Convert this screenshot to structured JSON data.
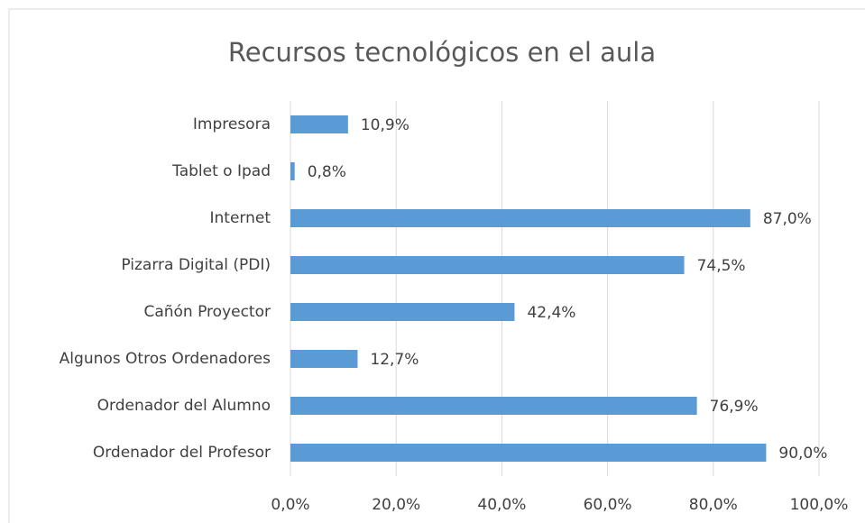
{
  "chart_data": {
    "type": "barh",
    "title": "Recursos tecnológicos en el aula",
    "categories": [
      "Impresora",
      "Tablet o Ipad",
      "Internet",
      "Pizarra Digital (PDI)",
      "Cañón Proyector",
      "Algunos Otros Ordenadores",
      "Ordenador del Alumno",
      "Ordenador del Profesor"
    ],
    "values": [
      10.9,
      0.8,
      87.0,
      74.5,
      42.4,
      12.7,
      76.9,
      90.0
    ],
    "value_labels": [
      "10,9%",
      "0,8%",
      "87,0%",
      "74,5%",
      "42,4%",
      "12,7%",
      "76,9%",
      "90,0%"
    ],
    "color": "#5b9bd5",
    "xlim": [
      0,
      100
    ],
    "xticks": [
      {
        "value": 0,
        "label": "0,0%"
      },
      {
        "value": 20,
        "label": "20,0%"
      },
      {
        "value": 40,
        "label": "40,0%"
      },
      {
        "value": 60,
        "label": "60,0%"
      },
      {
        "value": 80,
        "label": "80,0%"
      },
      {
        "value": 100,
        "label": "100,0%"
      }
    ],
    "grid": true
  }
}
